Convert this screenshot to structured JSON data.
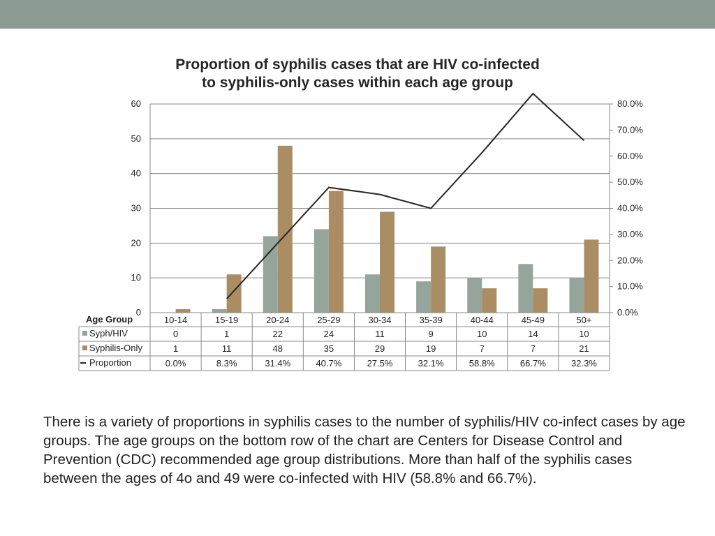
{
  "chart_data": {
    "type": "bar",
    "title": "Proportion of syphilis cases that are HIV co-infected",
    "title_line2": "to syphilis-only cases within each age group",
    "table_header": "Age Group",
    "categories": [
      "10-14",
      "15-19",
      "20-24",
      "25-29",
      "30-34",
      "35-39",
      "40-44",
      "45-49",
      "50+"
    ],
    "series": [
      {
        "name": "Syph/HIV",
        "type": "bar",
        "axis": "left",
        "color": "#95a59c",
        "values": [
          0,
          1,
          22,
          24,
          11,
          9,
          10,
          14,
          10
        ]
      },
      {
        "name": "Syphilis-Only",
        "type": "bar",
        "axis": "left",
        "color": "#ab8d64",
        "values": [
          1,
          11,
          48,
          35,
          29,
          19,
          7,
          7,
          21
        ]
      },
      {
        "name": "Proportion",
        "type": "line",
        "axis": "right",
        "color": "#262626",
        "values": [
          0.0,
          8.3,
          31.4,
          40.7,
          27.5,
          32.1,
          58.8,
          66.7,
          32.3
        ]
      }
    ],
    "table_labels": [
      [
        "0",
        "1",
        "22",
        "24",
        "11",
        "9",
        "10",
        "14",
        "10"
      ],
      [
        "1",
        "11",
        "48",
        "35",
        "29",
        "19",
        "7",
        "7",
        "21"
      ],
      [
        "0.0%",
        "8.3%",
        "31.4%",
        "40.7%",
        "27.5%",
        "32.1%",
        "58.8%",
        "66.7%",
        "32.3%"
      ]
    ],
    "line_points": [
      null,
      4,
      20,
      36,
      34,
      30,
      46,
      63,
      49.5
    ],
    "y_left": {
      "min": 0,
      "max": 60,
      "ticks": [
        "0",
        "10",
        "20",
        "30",
        "40",
        "50",
        "60"
      ]
    },
    "y_right": {
      "min": 0,
      "max": 80,
      "ticks": [
        "0.0%",
        "10.0%",
        "20.0%",
        "30.0%",
        "40.0%",
        "50.0%",
        "60.0%",
        "70.0%",
        "80.0%"
      ]
    },
    "grid": true,
    "legend": "data-table"
  },
  "body_text": "There is a variety of proportions in syphilis cases to the number of syphilis/HIV co-infect cases by age groups. The age groups on the bottom row of the chart are Centers for Disease Control and Prevention (CDC) recommended age group distributions. More than half of the syphilis cases between the ages of 4o and 49 were co-infected with HIV (58.8% and 66.7%)."
}
